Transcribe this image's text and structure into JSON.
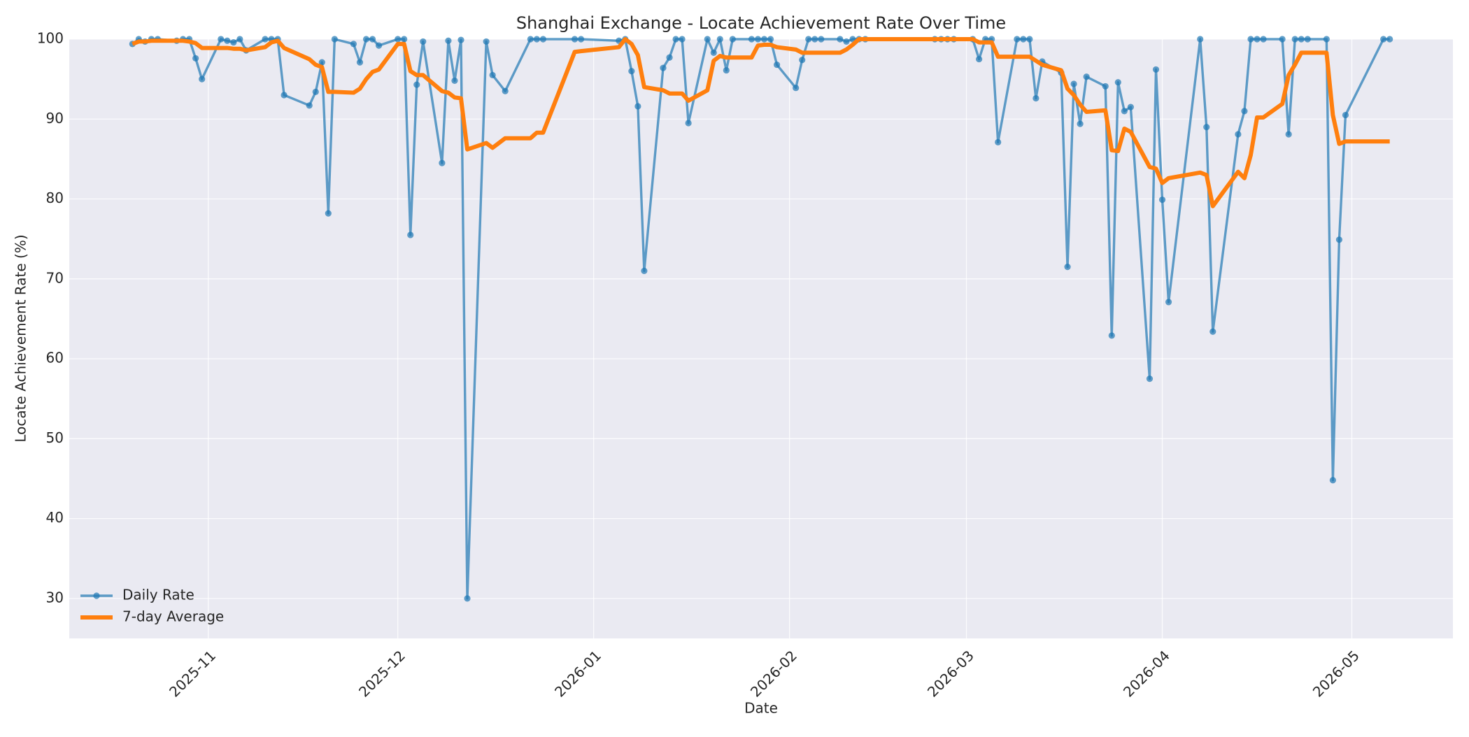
{
  "chart_data": {
    "type": "line",
    "title": "Shanghai Exchange - Locate Achievement Rate Over Time",
    "xlabel": "Date",
    "ylabel": "Locate Achievement Rate (%)",
    "x": [
      "2025-10-20",
      "2025-10-21",
      "2025-10-22",
      "2025-10-23",
      "2025-10-24",
      "2025-10-27",
      "2025-10-28",
      "2025-10-29",
      "2025-10-30",
      "2025-10-31",
      "2025-11-03",
      "2025-11-04",
      "2025-11-05",
      "2025-11-06",
      "2025-11-07",
      "2025-11-10",
      "2025-11-11",
      "2025-11-12",
      "2025-11-13",
      "2025-11-17",
      "2025-11-18",
      "2025-11-19",
      "2025-11-20",
      "2025-11-21",
      "2025-11-24",
      "2025-11-25",
      "2025-11-26",
      "2025-11-27",
      "2025-11-28",
      "2025-12-01",
      "2025-12-02",
      "2025-12-03",
      "2025-12-04",
      "2025-12-05",
      "2025-12-08",
      "2025-12-09",
      "2025-12-10",
      "2025-12-11",
      "2025-12-12",
      "2025-12-15",
      "2025-12-16",
      "2025-12-18",
      "2025-12-22",
      "2025-12-23",
      "2025-12-24",
      "2025-12-29",
      "2025-12-30",
      "2026-01-05",
      "2026-01-06",
      "2026-01-07",
      "2026-01-08",
      "2026-01-09",
      "2026-01-12",
      "2026-01-13",
      "2026-01-14",
      "2026-01-15",
      "2026-01-16",
      "2026-01-19",
      "2026-01-20",
      "2026-01-21",
      "2026-01-22",
      "2026-01-23",
      "2026-01-26",
      "2026-01-27",
      "2026-01-28",
      "2026-01-29",
      "2026-01-30",
      "2026-02-02",
      "2026-02-03",
      "2026-02-04",
      "2026-02-05",
      "2026-02-06",
      "2026-02-09",
      "2026-02-10",
      "2026-02-11",
      "2026-02-12",
      "2026-02-13",
      "2026-02-24",
      "2026-02-25",
      "2026-02-26",
      "2026-02-27",
      "2026-03-02",
      "2026-03-03",
      "2026-03-04",
      "2026-03-05",
      "2026-03-06",
      "2026-03-09",
      "2026-03-10",
      "2026-03-11",
      "2026-03-12",
      "2026-03-13",
      "2026-03-16",
      "2026-03-17",
      "2026-03-18",
      "2026-03-19",
      "2026-03-20",
      "2026-03-23",
      "2026-03-24",
      "2026-03-25",
      "2026-03-26",
      "2026-03-27",
      "2026-03-30",
      "2026-03-31",
      "2026-04-01",
      "2026-04-02",
      "2026-04-07",
      "2026-04-08",
      "2026-04-09",
      "2026-04-13",
      "2026-04-14",
      "2026-04-15",
      "2026-04-16",
      "2026-04-17",
      "2026-04-20",
      "2026-04-21",
      "2026-04-22",
      "2026-04-23",
      "2026-04-24",
      "2026-04-27",
      "2026-04-28",
      "2026-04-29",
      "2026-04-30",
      "2026-05-06",
      "2026-05-07"
    ],
    "series": [
      {
        "name": "Daily Rate",
        "color": "#1f77b4",
        "marker": "o",
        "values": [
          99.4,
          100,
          99.7,
          100,
          100,
          99.8,
          100,
          100,
          97.6,
          95,
          100,
          99.8,
          99.6,
          100,
          98.6,
          100,
          100,
          100,
          93,
          91.7,
          93.4,
          97.1,
          78.2,
          100,
          99.4,
          97.1,
          100,
          100,
          99.2,
          100,
          100,
          75.5,
          94.3,
          99.7,
          84.5,
          99.8,
          94.8,
          99.9,
          30,
          99.7,
          95.5,
          93.5,
          100,
          100,
          100,
          100,
          100,
          99.8,
          100,
          96,
          91.6,
          71,
          96.4,
          97.7,
          100,
          100,
          89.5,
          100,
          98.3,
          100,
          96.1,
          100,
          100,
          100,
          100,
          100,
          96.8,
          93.9,
          97.4,
          100,
          100,
          100,
          100,
          99.7,
          100,
          100,
          100,
          100,
          100,
          100,
          100,
          100,
          97.5,
          100,
          100,
          87.1,
          100,
          100,
          100,
          92.6,
          97.2,
          95.8,
          71.5,
          94.4,
          89.4,
          95.3,
          94.1,
          62.9,
          94.6,
          91,
          91.5,
          57.5,
          96.2,
          79.9,
          67.1,
          100,
          89,
          63.4,
          88.1,
          91,
          100,
          100,
          100,
          100,
          88.1,
          100,
          100,
          100,
          100,
          44.8,
          74.9,
          90.5,
          100,
          100
        ]
      },
      {
        "name": "7-day Average",
        "color": "#ff7f0e",
        "values": [
          99.4,
          99.7,
          99.7,
          99.8,
          99.8,
          99.8,
          99.8,
          99.7,
          99.5,
          98.9,
          98.9,
          98.9,
          98.8,
          98.8,
          98.6,
          99,
          99.6,
          99.8,
          98.9,
          97.5,
          96.8,
          96.5,
          93.4,
          93.4,
          93.3,
          93.8,
          95,
          95.9,
          96.2,
          99.4,
          99.4,
          96,
          95.5,
          95.5,
          93.5,
          93.3,
          92.7,
          92.6,
          86.2,
          87,
          86.4,
          87.6,
          87.6,
          88.3,
          88.3,
          98.4,
          98.5,
          99,
          100,
          99.4,
          98,
          94,
          93.6,
          93.2,
          93.2,
          93.2,
          92.3,
          93.6,
          97.3,
          97.9,
          97.7,
          97.7,
          97.7,
          99.2,
          99.3,
          99.3,
          99,
          98.7,
          98.3,
          98.3,
          98.3,
          98.3,
          98.3,
          98.7,
          99.3,
          100,
          100,
          100,
          100,
          100,
          100,
          100,
          99.6,
          99.6,
          99.6,
          97.8,
          97.8,
          97.8,
          97.8,
          97.3,
          96.8,
          96.1,
          93.8,
          93,
          91.8,
          90.9,
          91.1,
          86.1,
          86,
          88.8,
          88.4,
          84,
          83.8,
          82,
          82.6,
          83.3,
          83,
          79.1,
          83.4,
          82.6,
          85.5,
          90.2,
          90.2,
          91.9,
          95.5,
          96.8,
          98.3,
          98.3,
          98.3,
          90.5,
          86.9,
          87.2,
          87.2,
          87.2
        ]
      }
    ],
    "xlim": [
      "2025-10-10",
      "2026-05-17"
    ],
    "xticks": [
      "2025-11",
      "2025-12",
      "2026-01",
      "2026-02",
      "2026-03",
      "2026-04",
      "2026-05"
    ],
    "ylim": [
      25,
      100
    ],
    "yticks": [
      30,
      40,
      50,
      60,
      70,
      80,
      90,
      100
    ],
    "grid": true,
    "legend": "lower left"
  }
}
